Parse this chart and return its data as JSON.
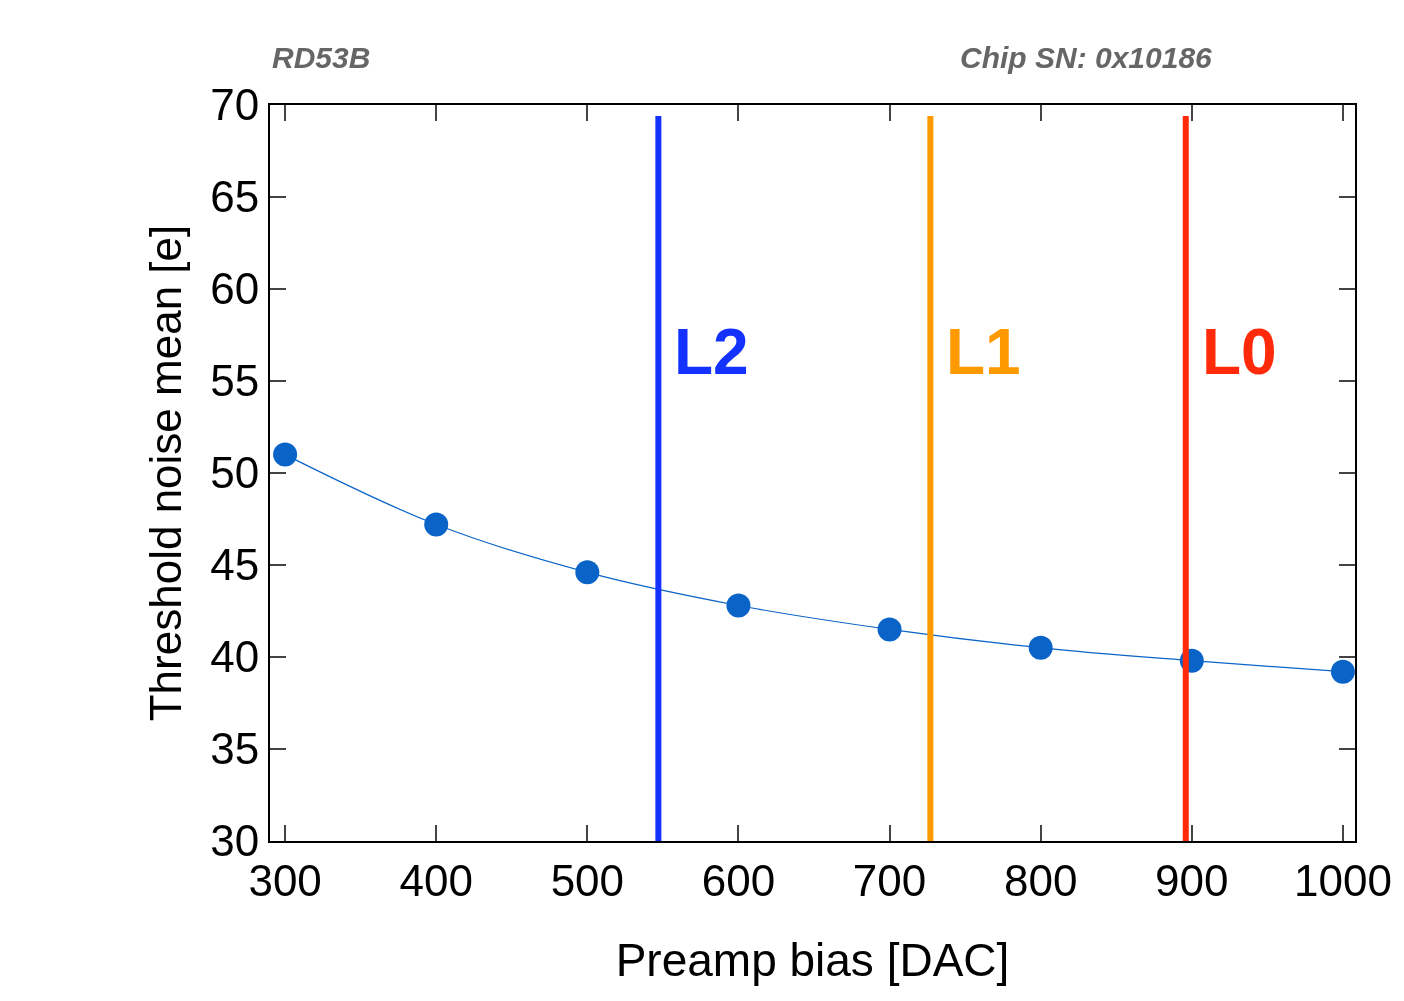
{
  "chart_data": {
    "type": "line",
    "xlabel": "Preamp bias [DAC]",
    "ylabel": "Threshold noise mean [e]",
    "annotations": [
      "RD53B",
      "Chip SN: 0x10186"
    ],
    "x": [
      300,
      400,
      500,
      600,
      700,
      800,
      900,
      1000
    ],
    "series": [
      {
        "color": "#0a64c8",
        "values": [
          51.0,
          47.2,
          44.6,
          42.8,
          41.5,
          40.5,
          39.8,
          39.2
        ]
      }
    ],
    "xlim": [
      290,
      1008
    ],
    "ylim": [
      30,
      70
    ],
    "xticks": [
      300,
      400,
      500,
      600,
      700,
      800,
      900,
      1000
    ],
    "yticks": [
      30,
      35,
      40,
      45,
      50,
      55,
      60,
      65,
      70
    ],
    "ref_lines": [
      {
        "axis": "x",
        "value": 547,
        "label": "L2",
        "color": "#1432ff"
      },
      {
        "axis": "x",
        "value": 727,
        "label": "L1",
        "color": "#ff9900"
      },
      {
        "axis": "x",
        "value": 896,
        "label": "L0",
        "color": "#ff2a0a"
      }
    ],
    "legend": false,
    "marker": "circle",
    "line_style": "solid"
  }
}
